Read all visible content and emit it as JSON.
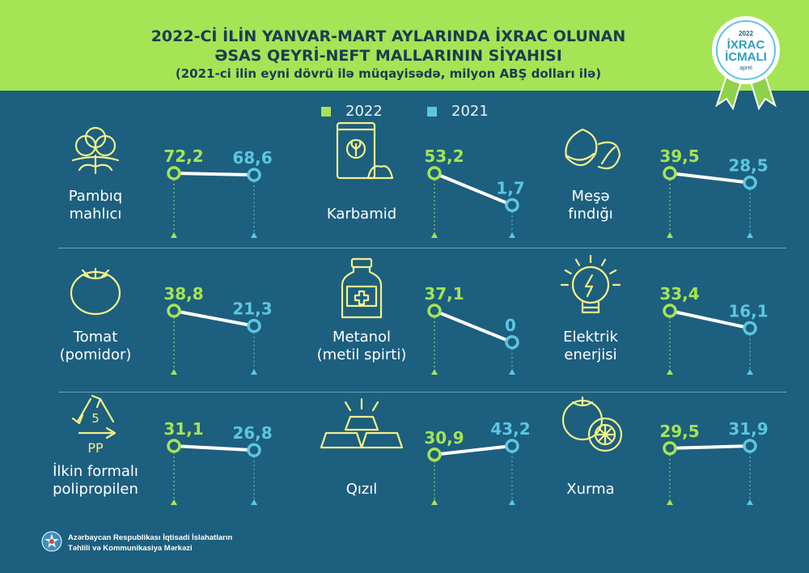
{
  "header": {
    "title_line1": "2022-Cİ İLİN YANVAR-MART AYLARINDA İXRAC OLUNAN",
    "title_line2": "ƏSAS QEYRİ-NEFT MALLARININ SİYAHISI",
    "subtitle": "(2021-ci ilin eyni dövrü ilə müqayisədə, milyon ABŞ dolları ilə)"
  },
  "badge": {
    "year": "2022",
    "line1": "İXRAC",
    "line2": "İCMALI",
    "month": "aprel"
  },
  "legend": {
    "label_2022": "2022",
    "label_2021": "2021"
  },
  "colors": {
    "accent_2022": "#a5e455",
    "accent_2021": "#5cc6e2",
    "background": "#1d5f7e",
    "header": "#a5e455"
  },
  "footer": {
    "line1": "Azərbaycan Respublikası İqtisadi İslahatların",
    "line2": "Təhlili və Kommunikasiya Mərkəzi"
  },
  "chart_data": {
    "type": "line",
    "title": "2022-Cİ İLİN YANVAR-MART AYLARINDA İXRAC OLUNAN ƏSAS QEYRİ-NEFT MALLARININ SİYAHISI",
    "subtitle": "(2021-ci ilin eyni dövrü ilə müqayisədə, milyon ABŞ dolları ilə)",
    "series_names": [
      "2022",
      "2021"
    ],
    "items": [
      {
        "name_lines": [
          "Pambıq",
          "mahlıcı"
        ],
        "icon": "cotton-icon",
        "v2022": 72.2,
        "v2021": 68.6,
        "label2022": "72,2",
        "label2021": "68,6"
      },
      {
        "name_lines": [
          "Karbamid"
        ],
        "icon": "fertilizer-bag-icon",
        "v2022": 53.2,
        "v2021": 1.7,
        "label2022": "53,2",
        "label2021": "1,7"
      },
      {
        "name_lines": [
          "Meşə",
          "fındığı"
        ],
        "icon": "hazelnut-icon",
        "v2022": 39.5,
        "v2021": 28.5,
        "label2022": "39,5",
        "label2021": "28,5"
      },
      {
        "name_lines": [
          "Tomat",
          "(pomidor)"
        ],
        "icon": "tomato-icon",
        "v2022": 38.8,
        "v2021": 21.3,
        "label2022": "38,8",
        "label2021": "21,3"
      },
      {
        "name_lines": [
          "Metanol",
          "(metil spirti)"
        ],
        "icon": "medicine-bottle-icon",
        "v2022": 37.1,
        "v2021": 0,
        "label2022": "37,1",
        "label2021": "0"
      },
      {
        "name_lines": [
          "Elektrik",
          "enerjisi"
        ],
        "icon": "lightbulb-icon",
        "v2022": 33.4,
        "v2021": 16.1,
        "label2022": "33,4",
        "label2021": "16,1"
      },
      {
        "name_lines": [
          "İlkin formalı",
          "polipropilen"
        ],
        "icon": "recycle-pp-icon",
        "icon_text": [
          "5",
          "PP"
        ],
        "v2022": 31.1,
        "v2021": 26.8,
        "label2022": "31,1",
        "label2021": "26,8"
      },
      {
        "name_lines": [
          "Qızıl"
        ],
        "icon": "gold-bars-icon",
        "v2022": 30.9,
        "v2021": 43.2,
        "label2022": "30,9",
        "label2021": "43,2"
      },
      {
        "name_lines": [
          "Xurma"
        ],
        "icon": "persimmon-icon",
        "v2022": 29.5,
        "v2021": 31.9,
        "label2022": "29,5",
        "label2021": "31,9"
      }
    ]
  }
}
